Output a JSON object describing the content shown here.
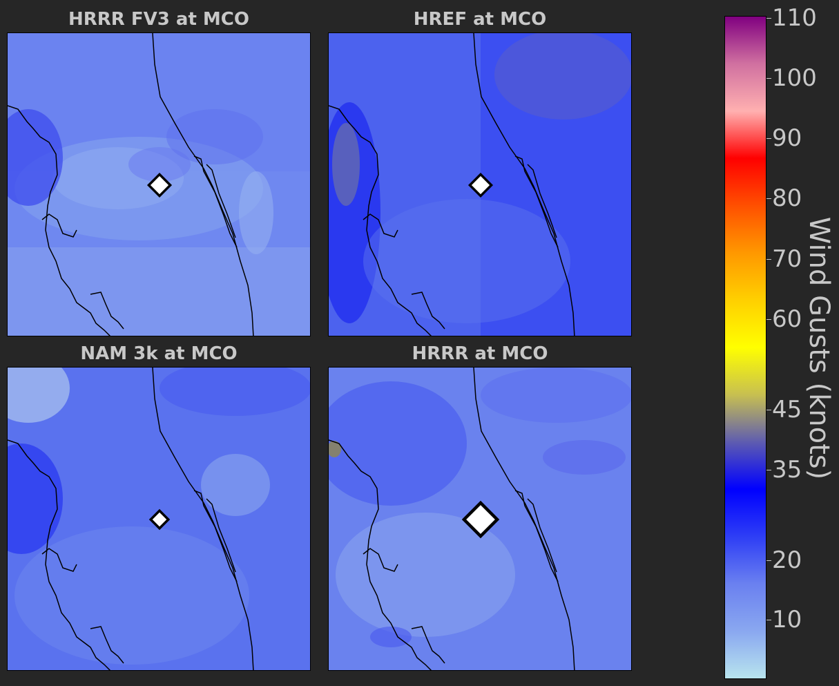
{
  "panels": [
    {
      "title": "HRRR FV3 at MCO",
      "marker": "MCO station",
      "base_color": "#6f88f0"
    },
    {
      "title": "HREF at MCO",
      "marker": "MCO station",
      "base_color": "#4c62ee"
    },
    {
      "title": "NAM 3k at MCO",
      "marker": "MCO station",
      "base_color": "#5a72ee"
    },
    {
      "title": "HRRR at MCO",
      "marker": "MCO station",
      "base_color": "#6a82ee"
    }
  ],
  "colorbar": {
    "label": "Wind Gusts (knots)",
    "min": 0,
    "max": 110,
    "ticks": [
      "10",
      "20",
      "35",
      "45",
      "60",
      "70",
      "80",
      "90",
      "100",
      "110"
    ],
    "colors": [
      "#b8e4ee",
      "#8aa8f0",
      "#6a80f0",
      "#2e3ef5",
      "#0000ff",
      "#5e5cb0",
      "#c8c050",
      "#ffff00",
      "#ffd000",
      "#ff9800",
      "#ff5000",
      "#ff0000",
      "#ffb0b0",
      "#d070a0",
      "#800080"
    ]
  }
}
